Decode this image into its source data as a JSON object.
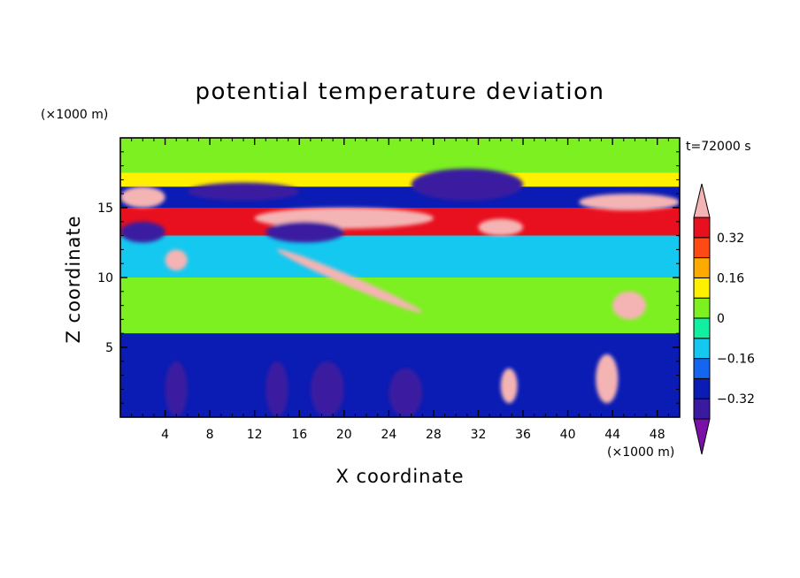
{
  "chart_data": {
    "type": "heatmap",
    "title": "potential temperature deviation",
    "xlabel": "X coordinate",
    "ylabel": "Z coordinate",
    "x_unit": "(×1000 m)",
    "y_unit": "(×1000 m)",
    "time_label": "t=72000 s",
    "xlim": [
      0,
      50
    ],
    "ylim": [
      0,
      20
    ],
    "x_ticks": [
      4,
      8,
      12,
      16,
      20,
      24,
      28,
      32,
      36,
      40,
      44,
      48
    ],
    "y_ticks": [
      5,
      10,
      15
    ],
    "colorbar": {
      "levels": [
        -0.4,
        -0.32,
        -0.24,
        -0.16,
        -0.08,
        0,
        0.08,
        0.16,
        0.24,
        0.32,
        0.4
      ],
      "colors": [
        "#7a10a8",
        "#3a1aa0",
        "#0a1cb4",
        "#1466f0",
        "#14c8f0",
        "#10f0a0",
        "#7cf020",
        "#fff000",
        "#ffaa00",
        "#ff4a14",
        "#e8101e",
        "#f5b4b4"
      ],
      "labels": [
        "0.32",
        "0.16",
        "0",
        "−0.16",
        "−0.32"
      ],
      "label_values": [
        0.32,
        0.16,
        0,
        -0.16,
        -0.32
      ]
    },
    "bands": [
      {
        "z": [
          17.5,
          20
        ],
        "value": 0.02
      },
      {
        "z": [
          16.5,
          17.5
        ],
        "value": 0.14
      },
      {
        "z": [
          15,
          16.5
        ],
        "value": -0.3
      },
      {
        "z": [
          13,
          15
        ],
        "value": 0.35
      },
      {
        "z": [
          10,
          13
        ],
        "value": -0.1
      },
      {
        "z": [
          6,
          10
        ],
        "value": 0.06
      },
      {
        "z": [
          0,
          6
        ],
        "value": -0.3
      }
    ],
    "features": [
      {
        "type": "warm_layer",
        "x": [
          0,
          4
        ],
        "z": [
          15,
          16.5
        ],
        "value": 0.4
      },
      {
        "type": "warm_layer",
        "x": [
          12,
          28
        ],
        "z": [
          13.5,
          15
        ],
        "value": 0.4
      },
      {
        "type": "warm_layer",
        "x": [
          32,
          36
        ],
        "z": [
          13,
          14.2
        ],
        "value": 0.4
      },
      {
        "type": "warm_layer",
        "x": [
          41,
          50
        ],
        "z": [
          14.8,
          16
        ],
        "value": 0.4
      },
      {
        "type": "cold_layer",
        "x": [
          6,
          16
        ],
        "z": [
          15.5,
          16.8
        ],
        "value": -0.38
      },
      {
        "type": "cold_layer",
        "x": [
          26,
          36
        ],
        "z": [
          15.5,
          17.8
        ],
        "value": -0.4
      },
      {
        "type": "cold_layer",
        "x": [
          13,
          20
        ],
        "z": [
          12.5,
          14
        ],
        "value": -0.34
      },
      {
        "type": "cold_layer",
        "x": [
          0,
          4
        ],
        "z": [
          12.5,
          14
        ],
        "value": -0.34
      },
      {
        "type": "warm_filament",
        "x": [
          14,
          27
        ],
        "z": [
          7.5,
          12
        ],
        "value": 0.4
      },
      {
        "type": "warm_cell",
        "x": [
          44,
          47
        ],
        "z": [
          7,
          9
        ],
        "value": 0.4
      },
      {
        "type": "warm_cell",
        "x": [
          4,
          6
        ],
        "z": [
          10.5,
          12
        ],
        "value": 0.4
      },
      {
        "type": "warm_column",
        "x": [
          42.5,
          44.5
        ],
        "z": [
          1,
          4.5
        ],
        "value": 0.4
      },
      {
        "type": "warm_column",
        "x": [
          34,
          35.5
        ],
        "z": [
          1,
          3.5
        ],
        "value": 0.4
      },
      {
        "type": "cold_column",
        "x": [
          4,
          6
        ],
        "z": [
          0,
          4
        ],
        "value": -0.4
      },
      {
        "type": "cold_column",
        "x": [
          13,
          15
        ],
        "z": [
          0,
          4
        ],
        "value": -0.4
      },
      {
        "type": "cold_column",
        "x": [
          17,
          20
        ],
        "z": [
          0,
          4
        ],
        "value": -0.4
      },
      {
        "type": "cold_column",
        "x": [
          24,
          27
        ],
        "z": [
          0,
          3.5
        ],
        "value": -0.4
      }
    ]
  }
}
